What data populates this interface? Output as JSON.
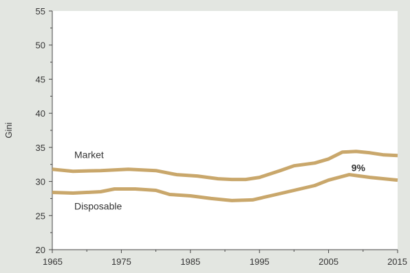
{
  "chart_data": {
    "type": "line",
    "ylabel": "Gini",
    "xlabel": "",
    "title": "",
    "xlim": [
      1965,
      2015
    ],
    "ylim": [
      20,
      55
    ],
    "x_ticks": [
      1965,
      1975,
      1985,
      1995,
      2005,
      2015
    ],
    "y_ticks": [
      20,
      25,
      30,
      35,
      40,
      45,
      50,
      55
    ],
    "grid": false,
    "series": [
      {
        "name": "Market",
        "color": "#c9a76b",
        "points": [
          [
            1965,
            31.8
          ],
          [
            1968,
            31.5
          ],
          [
            1972,
            31.6
          ],
          [
            1976,
            31.8
          ],
          [
            1980,
            31.6
          ],
          [
            1983,
            31.0
          ],
          [
            1986,
            30.8
          ],
          [
            1989,
            30.4
          ],
          [
            1991,
            30.3
          ],
          [
            1993,
            30.3
          ],
          [
            1995,
            30.6
          ],
          [
            1998,
            31.6
          ],
          [
            2000,
            32.3
          ],
          [
            2003,
            32.7
          ],
          [
            2005,
            33.3
          ],
          [
            2007,
            34.3
          ],
          [
            2009,
            34.4
          ],
          [
            2011,
            34.2
          ],
          [
            2013,
            33.9
          ],
          [
            2015,
            33.8
          ]
        ]
      },
      {
        "name": "Disposable",
        "color": "#c9a76b",
        "points": [
          [
            1965,
            28.4
          ],
          [
            1968,
            28.3
          ],
          [
            1972,
            28.5
          ],
          [
            1974,
            28.9
          ],
          [
            1977,
            28.9
          ],
          [
            1980,
            28.7
          ],
          [
            1982,
            28.1
          ],
          [
            1985,
            27.9
          ],
          [
            1988,
            27.5
          ],
          [
            1991,
            27.2
          ],
          [
            1994,
            27.3
          ],
          [
            1997,
            28.0
          ],
          [
            2000,
            28.7
          ],
          [
            2003,
            29.4
          ],
          [
            2005,
            30.2
          ],
          [
            2008,
            31.0
          ],
          [
            2011,
            30.6
          ],
          [
            2013,
            30.4
          ],
          [
            2015,
            30.2
          ]
        ]
      }
    ],
    "annotations": [
      {
        "text": "9%",
        "x": 2008.3,
        "y": 32.0
      }
    ]
  }
}
